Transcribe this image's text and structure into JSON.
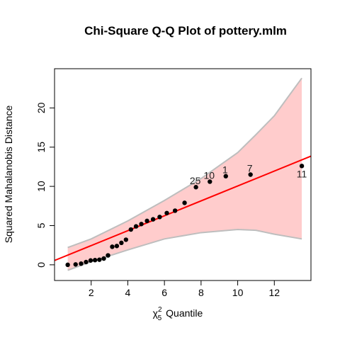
{
  "chart_data": {
    "type": "scatter",
    "title": "Chi-Square Q-Q Plot of pottery.mlm",
    "xlabel": {
      "symbol": "χ",
      "superscript": "2",
      "subscript": "5",
      "text": "Quantile"
    },
    "ylabel": "Squared Mahalanobis Distance",
    "xlim": [
      0.0,
      14.0
    ],
    "ylim": [
      -2.0,
      25.0
    ],
    "x_ticks": [
      2,
      4,
      6,
      8,
      10,
      12
    ],
    "y_ticks": [
      0,
      5,
      10,
      15,
      20
    ],
    "grid": false,
    "points": [
      {
        "x": 0.72,
        "y": 0.0
      },
      {
        "x": 1.15,
        "y": 0.05
      },
      {
        "x": 1.45,
        "y": 0.15
      },
      {
        "x": 1.72,
        "y": 0.35
      },
      {
        "x": 1.97,
        "y": 0.55
      },
      {
        "x": 2.21,
        "y": 0.6
      },
      {
        "x": 2.45,
        "y": 0.65
      },
      {
        "x": 2.69,
        "y": 0.8
      },
      {
        "x": 2.92,
        "y": 1.2
      },
      {
        "x": 3.15,
        "y": 2.3
      },
      {
        "x": 3.4,
        "y": 2.4
      },
      {
        "x": 3.65,
        "y": 2.8
      },
      {
        "x": 3.9,
        "y": 3.2
      },
      {
        "x": 4.17,
        "y": 4.5
      },
      {
        "x": 4.45,
        "y": 4.9
      },
      {
        "x": 4.74,
        "y": 5.2
      },
      {
        "x": 5.05,
        "y": 5.6
      },
      {
        "x": 5.38,
        "y": 5.8
      },
      {
        "x": 5.74,
        "y": 6.1
      },
      {
        "x": 6.13,
        "y": 6.6
      },
      {
        "x": 6.58,
        "y": 6.9
      },
      {
        "x": 7.1,
        "y": 7.9
      },
      {
        "x": 7.72,
        "y": 9.9,
        "label": "25"
      },
      {
        "x": 8.48,
        "y": 10.6,
        "label": "10"
      },
      {
        "x": 9.35,
        "y": 11.3,
        "label": "1"
      },
      {
        "x": 10.7,
        "y": 11.5,
        "label": "7"
      },
      {
        "x": 13.5,
        "y": 12.6,
        "label": "11"
      }
    ],
    "reference_line": {
      "intercept": 0.55,
      "slope": 0.95,
      "color": "#ff0000"
    },
    "envelope": {
      "fill_color": "#ffcccc",
      "border_color": "#bebebe",
      "upper": [
        {
          "x": 0.72,
          "y": 2.2
        },
        {
          "x": 2.0,
          "y": 3.3
        },
        {
          "x": 4.0,
          "y": 5.6
        },
        {
          "x": 6.0,
          "y": 8.2
        },
        {
          "x": 8.0,
          "y": 11.0
        },
        {
          "x": 10.0,
          "y": 14.3
        },
        {
          "x": 11.0,
          "y": 16.6
        },
        {
          "x": 12.0,
          "y": 19.0
        },
        {
          "x": 13.5,
          "y": 23.8
        }
      ],
      "lower": [
        {
          "x": 0.72,
          "y": -0.7
        },
        {
          "x": 2.0,
          "y": 0.4
        },
        {
          "x": 4.0,
          "y": 1.9
        },
        {
          "x": 6.0,
          "y": 3.3
        },
        {
          "x": 8.0,
          "y": 4.1
        },
        {
          "x": 10.0,
          "y": 4.5
        },
        {
          "x": 11.0,
          "y": 4.4
        },
        {
          "x": 12.0,
          "y": 3.9
        },
        {
          "x": 13.5,
          "y": 3.3
        }
      ]
    },
    "point_color": "#000000"
  }
}
